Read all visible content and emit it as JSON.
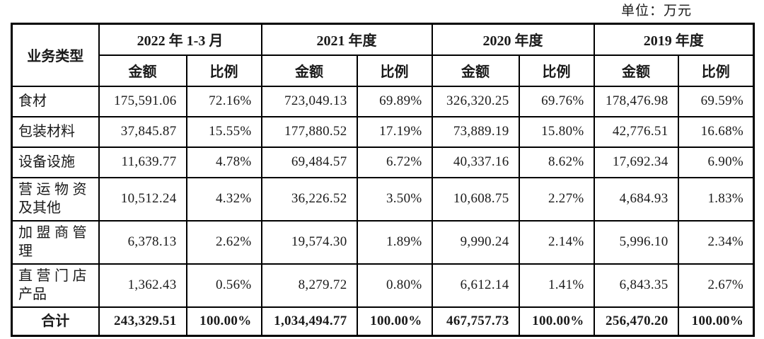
{
  "unit_label": "单位：万元",
  "colors": {
    "background": "#ffffff",
    "border": "#000000",
    "text": "#1a1a1a"
  },
  "table": {
    "corner_header": "业务类型",
    "period_headers": [
      "2022 年 1-3 月",
      "2021 年度",
      "2020 年度",
      "2019 年度"
    ],
    "sub_headers": {
      "amount": "金额",
      "ratio": "比例"
    },
    "rows": [
      {
        "label": "食材",
        "cells": [
          "175,591.06",
          "72.16%",
          "723,049.13",
          "69.89%",
          "326,320.25",
          "69.76%",
          "178,476.98",
          "69.59%"
        ]
      },
      {
        "label": "包装材料",
        "cells": [
          "37,845.87",
          "15.55%",
          "177,880.52",
          "17.19%",
          "73,889.19",
          "15.80%",
          "42,776.51",
          "16.68%"
        ]
      },
      {
        "label": "设备设施",
        "cells": [
          "11,639.77",
          "4.78%",
          "69,484.57",
          "6.72%",
          "40,337.16",
          "8.62%",
          "17,692.34",
          "6.90%"
        ]
      },
      {
        "label": "营运物资及其他",
        "cells": [
          "10,512.24",
          "4.32%",
          "36,226.52",
          "3.50%",
          "10,608.75",
          "2.27%",
          "4,684.93",
          "1.83%"
        ]
      },
      {
        "label": "加盟商管理",
        "cells": [
          "6,378.13",
          "2.62%",
          "19,574.30",
          "1.89%",
          "9,990.24",
          "2.14%",
          "5,996.10",
          "2.34%"
        ]
      },
      {
        "label": "直营门店产品",
        "cells": [
          "1,362.43",
          "0.56%",
          "8,279.72",
          "0.80%",
          "6,612.14",
          "1.41%",
          "6,843.35",
          "2.67%"
        ]
      }
    ],
    "total_row": {
      "label": "合计",
      "cells": [
        "243,329.51",
        "100.00%",
        "1,034,494.77",
        "100.00%",
        "467,757.73",
        "100.00%",
        "256,470.20",
        "100.00%"
      ]
    }
  },
  "chart_data": {
    "type": "table",
    "title": "",
    "unit": "万元",
    "row_header": "业务类型",
    "columns": [
      "2022 年 1-3 月 金额",
      "2022 年 1-3 月 比例",
      "2021 年度 金额",
      "2021 年度 比例",
      "2020 年度 金额",
      "2020 年度 比例",
      "2019 年度 金额",
      "2019 年度 比例"
    ],
    "categories": [
      "食材",
      "包装材料",
      "设备设施",
      "营运物资及其他",
      "加盟商管理",
      "直营门店产品",
      "合计"
    ],
    "series": [
      {
        "name": "2022年1-3月金额",
        "values": [
          175591.06,
          37845.87,
          11639.77,
          10512.24,
          6378.13,
          1362.43,
          243329.51
        ]
      },
      {
        "name": "2022年1-3月比例%",
        "values": [
          72.16,
          15.55,
          4.78,
          4.32,
          2.62,
          0.56,
          100.0
        ]
      },
      {
        "name": "2021年度金额",
        "values": [
          723049.13,
          177880.52,
          69484.57,
          36226.52,
          19574.3,
          8279.72,
          1034494.77
        ]
      },
      {
        "name": "2021年度比例%",
        "values": [
          69.89,
          17.19,
          6.72,
          3.5,
          1.89,
          0.8,
          100.0
        ]
      },
      {
        "name": "2020年度金额",
        "values": [
          326320.25,
          73889.19,
          40337.16,
          10608.75,
          9990.24,
          6612.14,
          467757.73
        ]
      },
      {
        "name": "2020年度比例%",
        "values": [
          69.76,
          15.8,
          8.62,
          2.27,
          2.14,
          1.41,
          100.0
        ]
      },
      {
        "name": "2019年度金额",
        "values": [
          178476.98,
          42776.51,
          17692.34,
          4684.93,
          5996.1,
          6843.35,
          256470.2
        ]
      },
      {
        "name": "2019年度比例%",
        "values": [
          69.59,
          16.68,
          6.9,
          1.83,
          2.34,
          2.67,
          100.0
        ]
      }
    ]
  }
}
